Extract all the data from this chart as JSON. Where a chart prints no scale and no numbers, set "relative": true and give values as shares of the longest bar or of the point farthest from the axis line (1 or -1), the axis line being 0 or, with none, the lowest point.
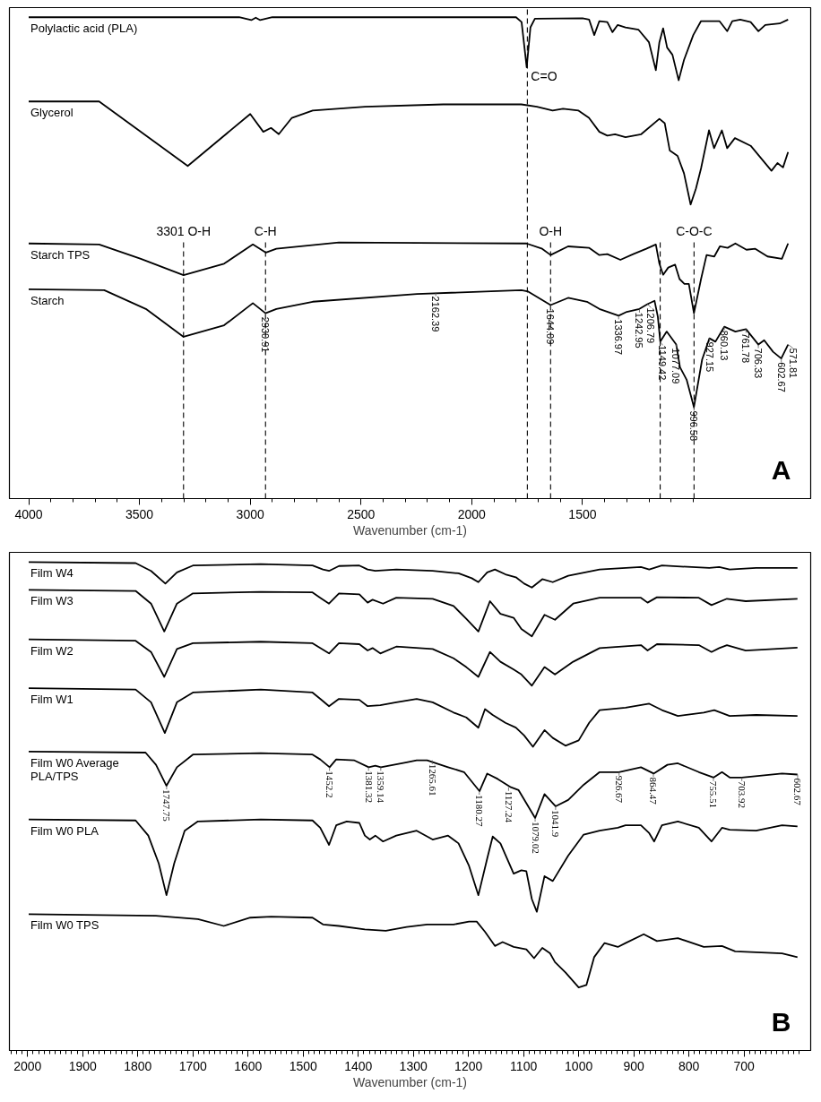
{
  "chart_data": [
    {
      "type": "line",
      "relative": true,
      "xlabel": "Wavenumber (cm-1)",
      "xlim": [
        4087,
        470
      ],
      "xticks": [
        4000,
        3500,
        3000,
        2500,
        2000,
        1500
      ],
      "series": [
        {
          "name": "Polylactic acid (PLA)",
          "color": "#000000",
          "x": [
            4000,
            3050,
            2995,
            2975,
            2955,
            2900,
            1800,
            1775,
            1752,
            1735,
            1715,
            1500,
            1470,
            1447,
            1424,
            1388,
            1365,
            1341,
            1306,
            1247,
            1200,
            1169,
            1153,
            1136,
            1118,
            1094,
            1066,
            1042,
            1000,
            965,
            882,
            847,
            824,
            788,
            741,
            706,
            675,
            610,
            572
          ],
          "values": [
            1.0,
            1.0,
            0.994,
            0.999,
            0.994,
            1.0,
            1.0,
            0.99,
            0.896,
            0.979,
            0.997,
            0.998,
            0.995,
            0.963,
            0.992,
            0.99,
            0.969,
            0.984,
            0.979,
            0.974,
            0.948,
            0.89,
            0.948,
            0.977,
            0.937,
            0.922,
            0.869,
            0.911,
            0.963,
            0.992,
            0.992,
            0.971,
            0.992,
            0.995,
            0.99,
            0.971,
            0.984,
            0.987,
            0.995
          ]
        },
        {
          "name": "Glycerol",
          "color": "#000000",
          "x": [
            4000,
            3682,
            3282,
            3000,
            2941,
            2906,
            2871,
            2812,
            2718,
            2482,
            2129,
            1776,
            1706,
            1635,
            1588,
            1518,
            1471,
            1424,
            1388,
            1353,
            1306,
            1235,
            1153,
            1129,
            1106,
            1071,
            1042,
            1012,
            988,
            965,
            929,
            906,
            871,
            847,
            812,
            741,
            647,
            620,
            595,
            572
          ],
          "values": [
            0.825,
            0.825,
            0.691,
            0.799,
            0.762,
            0.77,
            0.757,
            0.791,
            0.806,
            0.814,
            0.819,
            0.819,
            0.814,
            0.806,
            0.81,
            0.806,
            0.791,
            0.762,
            0.754,
            0.757,
            0.751,
            0.757,
            0.789,
            0.78,
            0.723,
            0.712,
            0.676,
            0.611,
            0.644,
            0.686,
            0.765,
            0.728,
            0.765,
            0.728,
            0.749,
            0.733,
            0.681,
            0.697,
            0.688,
            0.72
          ]
        },
        {
          "name": "Starch TPS",
          "color": "#000000",
          "x": [
            4000,
            3682,
            3494,
            3301,
            3118,
            2988,
            2929,
            2882,
            2600,
            1753,
            1682,
            1644,
            1565,
            1471,
            1424,
            1388,
            1329,
            1271,
            1212,
            1169,
            1153,
            1136,
            1113,
            1082,
            1062,
            1040,
            1020,
            997,
            965,
            940,
            905,
            880,
            845,
            810,
            760,
            720,
            665,
            600,
            572
          ],
          "values": [
            0.53,
            0.528,
            0.498,
            0.464,
            0.488,
            0.528,
            0.511,
            0.519,
            0.532,
            0.53,
            0.519,
            0.506,
            0.524,
            0.521,
            0.506,
            0.508,
            0.496,
            0.508,
            0.519,
            0.528,
            0.488,
            0.465,
            0.48,
            0.486,
            0.456,
            0.446,
            0.446,
            0.385,
            0.456,
            0.506,
            0.503,
            0.524,
            0.521,
            0.53,
            0.517,
            0.519,
            0.503,
            0.498,
            0.53
          ]
        },
        {
          "name": "Starch",
          "color": "#000000",
          "x": [
            4000,
            3659,
            3471,
            3301,
            3118,
            2988,
            2931,
            2882,
            2718,
            2247,
            1776,
            1745,
            1644,
            1565,
            1480,
            1424,
            1337,
            1300,
            1243,
            1207,
            1175,
            1160,
            1149,
            1120,
            1077,
            1060,
            1030,
            997,
            960,
            927,
            900,
            860,
            810,
            762,
            706,
            680,
            640,
            603,
            572
          ],
          "values": [
            0.435,
            0.433,
            0.394,
            0.336,
            0.36,
            0.406,
            0.385,
            0.394,
            0.409,
            0.425,
            0.433,
            0.43,
            0.402,
            0.417,
            0.409,
            0.394,
            0.38,
            0.388,
            0.394,
            0.404,
            0.411,
            0.378,
            0.326,
            0.347,
            0.32,
            0.273,
            0.247,
            0.19,
            0.289,
            0.333,
            0.326,
            0.357,
            0.347,
            0.352,
            0.32,
            0.329,
            0.305,
            0.291,
            0.32
          ]
        }
      ],
      "ref_lines": [
        {
          "axis": "x",
          "value": 3301,
          "label": "3301 O-H",
          "color": "#000000",
          "line_style": "dashed"
        },
        {
          "axis": "x",
          "value": 2930.91,
          "label": "C-H",
          "color": "#000000",
          "line_style": "dashed"
        },
        {
          "axis": "x",
          "value": 1644.09,
          "label": "O-H",
          "color": "#000000",
          "line_style": "dashed"
        },
        {
          "axis": "x",
          "value": 996.58,
          "label": "C-O-C",
          "color": "#000000",
          "line_style": "dashed"
        },
        {
          "axis": "x",
          "value": 1149.42,
          "label": null,
          "color": "#000000",
          "line_style": "dashed"
        },
        {
          "axis": "x",
          "value": 1749,
          "label": "C=O",
          "color": "#000000",
          "line_style": "dashed"
        }
      ],
      "annotations": [
        "A",
        {
          "text": "2930.91",
          "x": 2930.91,
          "y": 0.385
        },
        {
          "text": "2162.39",
          "x": 2162.39,
          "y": 0.428
        },
        {
          "text": "1644.09",
          "x": 1644.09,
          "y": 0.402
        },
        {
          "text": "1336.97",
          "x": 1336.97,
          "y": 0.38
        },
        {
          "text": "1242.95",
          "x": 1242.95,
          "y": 0.394
        },
        {
          "text": "1206.79",
          "x": 1206.79,
          "y": 0.404
        },
        {
          "text": "1149.42",
          "x": 1149.42,
          "y": 0.326
        },
        {
          "text": "1077.09",
          "x": 1077.09,
          "y": 0.32
        },
        {
          "text": "996.58",
          "x": 996.58,
          "y": 0.19
        },
        {
          "text": "927.15",
          "x": 927.15,
          "y": 0.333
        },
        {
          "text": "860.13",
          "x": 860.13,
          "y": 0.357
        },
        {
          "text": "761.78",
          "x": 761.78,
          "y": 0.352
        },
        {
          "text": "706.33",
          "x": 706.33,
          "y": 0.32
        },
        {
          "text": "602.67",
          "x": 602.67,
          "y": 0.291
        },
        {
          "text": "571.81",
          "x": 571.81,
          "y": 0.32
        }
      ]
    },
    {
      "type": "line",
      "relative": true,
      "xlabel": "Wavenumber (cm-1)",
      "xlim": [
        2033,
        579
      ],
      "xticks": [
        2000,
        1900,
        1800,
        1700,
        1600,
        1500,
        1400,
        1300,
        1200,
        1100,
        1000,
        900,
        800,
        700
      ],
      "series": [
        {
          "name": "Film W4",
          "color": "#000000",
          "x": [
            1998,
            1804,
            1776,
            1750,
            1729,
            1700,
            1577,
            1483,
            1464,
            1453,
            1435,
            1398,
            1383,
            1369,
            1331,
            1265,
            1218,
            1194,
            1182,
            1166,
            1152,
            1133,
            1114,
            1099,
            1085,
            1066,
            1047,
            1019,
            962,
            887,
            872,
            849,
            763,
            745,
            726,
            678,
            603
          ],
          "values": [
            1.0,
            0.998,
            0.982,
            0.956,
            0.979,
            0.993,
            0.996,
            0.993,
            0.985,
            0.982,
            0.992,
            0.993,
            0.985,
            0.982,
            0.985,
            0.982,
            0.977,
            0.967,
            0.959,
            0.979,
            0.985,
            0.975,
            0.969,
            0.956,
            0.948,
            0.965,
            0.959,
            0.972,
            0.985,
            0.99,
            0.985,
            0.993,
            0.988,
            0.99,
            0.985,
            0.988,
            0.988
          ]
        },
        {
          "name": "Film W3",
          "color": "#000000",
          "x": [
            1998,
            1804,
            1776,
            1752,
            1729,
            1700,
            1577,
            1483,
            1469,
            1453,
            1435,
            1398,
            1383,
            1374,
            1355,
            1331,
            1265,
            1227,
            1204,
            1182,
            1161,
            1142,
            1118,
            1104,
            1085,
            1062,
            1043,
            1010,
            962,
            887,
            875,
            858,
            782,
            759,
            731,
            697,
            603
          ],
          "values": [
            0.943,
            0.941,
            0.915,
            0.858,
            0.915,
            0.936,
            0.939,
            0.938,
            0.927,
            0.915,
            0.936,
            0.934,
            0.917,
            0.923,
            0.915,
            0.927,
            0.925,
            0.91,
            0.884,
            0.858,
            0.92,
            0.894,
            0.886,
            0.863,
            0.848,
            0.892,
            0.882,
            0.915,
            0.927,
            0.927,
            0.917,
            0.928,
            0.927,
            0.912,
            0.925,
            0.92,
            0.925
          ]
        },
        {
          "name": "Film W2",
          "color": "#000000",
          "x": [
            1998,
            1804,
            1776,
            1752,
            1729,
            1700,
            1577,
            1483,
            1469,
            1453,
            1435,
            1398,
            1383,
            1374,
            1360,
            1331,
            1265,
            1227,
            1204,
            1182,
            1161,
            1142,
            1118,
            1104,
            1085,
            1062,
            1043,
            1010,
            962,
            887,
            875,
            858,
            782,
            759,
            745,
            731,
            697,
            603
          ],
          "values": [
            0.842,
            0.839,
            0.816,
            0.765,
            0.822,
            0.834,
            0.837,
            0.834,
            0.824,
            0.813,
            0.834,
            0.832,
            0.819,
            0.824,
            0.813,
            0.827,
            0.822,
            0.803,
            0.785,
            0.765,
            0.816,
            0.796,
            0.78,
            0.77,
            0.747,
            0.785,
            0.77,
            0.796,
            0.824,
            0.83,
            0.819,
            0.832,
            0.83,
            0.816,
            0.824,
            0.83,
            0.819,
            0.825
          ]
        },
        {
          "name": "Film W1",
          "color": "#000000",
          "x": [
            1998,
            1804,
            1776,
            1751,
            1729,
            1700,
            1577,
            1483,
            1469,
            1453,
            1435,
            1398,
            1383,
            1360,
            1331,
            1294,
            1265,
            1227,
            1204,
            1182,
            1170,
            1156,
            1133,
            1114,
            1099,
            1083,
            1062,
            1047,
            1024,
            1000,
            981,
            962,
            915,
            872,
            849,
            820,
            773,
            754,
            726,
            678,
            603
          ],
          "values": [
            0.742,
            0.739,
            0.713,
            0.65,
            0.713,
            0.733,
            0.739,
            0.733,
            0.72,
            0.705,
            0.72,
            0.718,
            0.705,
            0.707,
            0.713,
            0.72,
            0.713,
            0.692,
            0.682,
            0.661,
            0.699,
            0.687,
            0.671,
            0.661,
            0.645,
            0.622,
            0.656,
            0.64,
            0.624,
            0.635,
            0.671,
            0.697,
            0.702,
            0.71,
            0.697,
            0.685,
            0.692,
            0.697,
            0.685,
            0.687,
            0.685
          ]
        },
        {
          "name": "Film W0 Average PLA/TPS",
          "color": "#000000",
          "x": [
            1998,
            1786,
            1767,
            1748,
            1729,
            1700,
            1577,
            1483,
            1469,
            1452,
            1440,
            1407,
            1381,
            1369,
            1359,
            1312,
            1294,
            1275,
            1237,
            1208,
            1180,
            1166,
            1147,
            1123,
            1109,
            1079,
            1062,
            1042,
            1019,
            991,
            962,
            927,
            887,
            864,
            839,
            820,
            782,
            755,
            740,
            726,
            704,
            631,
            603
          ],
          "values": [
            0.612,
            0.61,
            0.585,
            0.542,
            0.58,
            0.606,
            0.609,
            0.606,
            0.596,
            0.58,
            0.596,
            0.594,
            0.58,
            0.583,
            0.58,
            0.59,
            0.594,
            0.594,
            0.58,
            0.57,
            0.531,
            0.567,
            0.556,
            0.539,
            0.533,
            0.476,
            0.525,
            0.5,
            0.513,
            0.544,
            0.57,
            0.57,
            0.58,
            0.567,
            0.585,
            0.588,
            0.57,
            0.559,
            0.57,
            0.559,
            0.559,
            0.567,
            0.565
          ]
        },
        {
          "name": "Film W0 PLA",
          "color": "#000000",
          "x": [
            1998,
            1804,
            1781,
            1762,
            1748,
            1734,
            1715,
            1691,
            1577,
            1483,
            1469,
            1453,
            1440,
            1421,
            1398,
            1388,
            1379,
            1369,
            1355,
            1331,
            1294,
            1265,
            1237,
            1218,
            1199,
            1182,
            1166,
            1156,
            1142,
            1118,
            1104,
            1095,
            1085,
            1076,
            1062,
            1047,
            1019,
            991,
            962,
            929,
            915,
            887,
            872,
            863,
            849,
            820,
            782,
            759,
            740,
            726,
            678,
            631,
            603
          ],
          "values": [
            0.473,
            0.471,
            0.44,
            0.383,
            0.318,
            0.383,
            0.45,
            0.469,
            0.473,
            0.471,
            0.456,
            0.421,
            0.461,
            0.469,
            0.466,
            0.44,
            0.432,
            0.44,
            0.428,
            0.44,
            0.45,
            0.432,
            0.44,
            0.424,
            0.378,
            0.318,
            0.393,
            0.438,
            0.424,
            0.362,
            0.369,
            0.367,
            0.31,
            0.284,
            0.357,
            0.347,
            0.399,
            0.442,
            0.45,
            0.456,
            0.461,
            0.461,
            0.445,
            0.428,
            0.461,
            0.469,
            0.456,
            0.428,
            0.456,
            0.452,
            0.45,
            0.461,
            0.459
          ]
        },
        {
          "name": "Film W0 TPS",
          "color": "#000000",
          "x": [
            1998,
            1767,
            1691,
            1644,
            1596,
            1558,
            1483,
            1464,
            1435,
            1388,
            1350,
            1312,
            1275,
            1227,
            1199,
            1185,
            1170,
            1152,
            1138,
            1118,
            1095,
            1081,
            1066,
            1052,
            1043,
            1024,
            1000,
            986,
            972,
            953,
            929,
            915,
            882,
            858,
            820,
            773,
            740,
            716,
            678,
            631,
            603
          ],
          "values": [
            0.279,
            0.276,
            0.269,
            0.255,
            0.272,
            0.274,
            0.272,
            0.258,
            0.255,
            0.248,
            0.245,
            0.253,
            0.258,
            0.258,
            0.264,
            0.264,
            0.243,
            0.214,
            0.222,
            0.212,
            0.207,
            0.189,
            0.21,
            0.199,
            0.181,
            0.16,
            0.129,
            0.134,
            0.191,
            0.22,
            0.212,
            0.22,
            0.238,
            0.224,
            0.23,
            0.212,
            0.214,
            0.203,
            0.201,
            0.199,
            0.191
          ]
        }
      ],
      "annotations": [
        "B",
        {
          "text": "1747.75",
          "x": 1747.75,
          "y": 0.542
        },
        {
          "text": "1452.2",
          "x": 1452.2,
          "y": 0.58
        },
        {
          "text": "1381.32",
          "x": 1381.32,
          "y": 0.58
        },
        {
          "text": "1359.14",
          "x": 1359.14,
          "y": 0.58
        },
        {
          "text": "1265.61",
          "x": 1265.61,
          "y": 0.594
        },
        {
          "text": "1180.27",
          "x": 1180.27,
          "y": 0.531
        },
        {
          "text": "1127.24",
          "x": 1127.24,
          "y": 0.539
        },
        {
          "text": "1079.02",
          "x": 1079.02,
          "y": 0.476
        },
        {
          "text": "1041.9",
          "x": 1041.9,
          "y": 0.5
        },
        {
          "text": "926.67",
          "x": 926.67,
          "y": 0.57
        },
        {
          "text": "864.47",
          "x": 864.47,
          "y": 0.567
        },
        {
          "text": "755.51",
          "x": 755.51,
          "y": 0.559
        },
        {
          "text": "703.92",
          "x": 703.92,
          "y": 0.559
        },
        {
          "text": "602.67",
          "x": 602.67,
          "y": 0.565
        }
      ]
    }
  ]
}
